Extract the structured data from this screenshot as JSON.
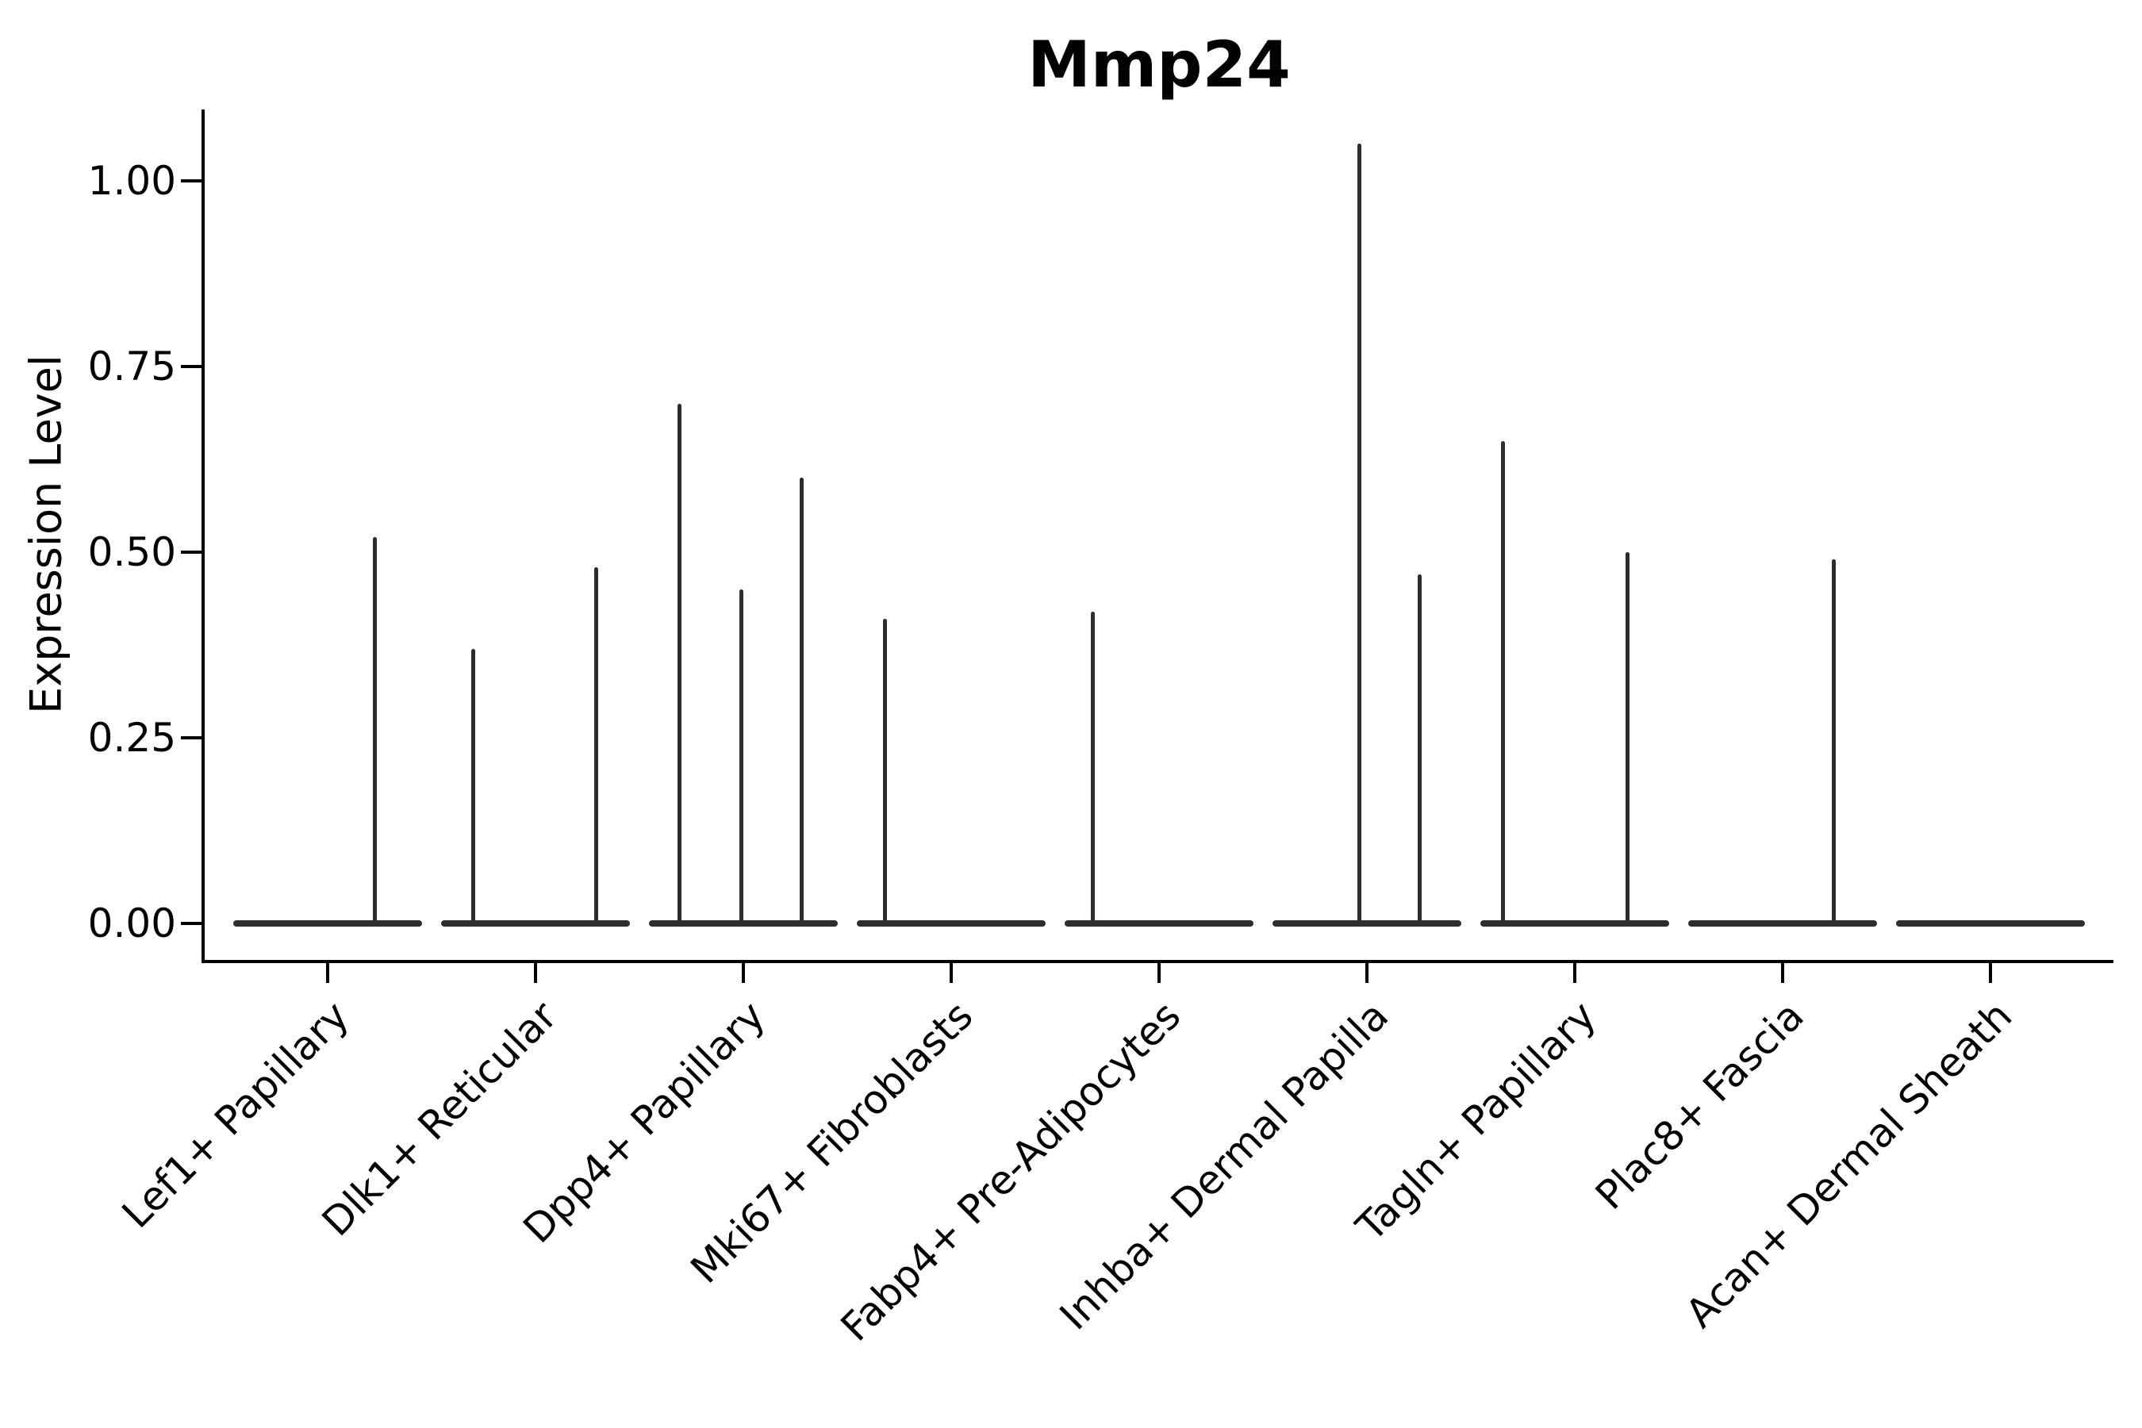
{
  "title": "Mmp24",
  "axes": {
    "ylabel": "Expression Level",
    "xlabel": ""
  },
  "colors": {
    "line": "#2d2d2d",
    "text": "#000000",
    "background": "#ffffff"
  },
  "chart_data": {
    "type": "violin",
    "title": "Mmp24",
    "xlabel": "",
    "ylabel": "Expression Level",
    "ylim": [
      0,
      1.1
    ],
    "yticks": [
      0,
      0.25,
      0.5,
      0.75,
      1.0
    ],
    "ytick_labels": [
      "0.00",
      "0.25",
      "0.50",
      "0.75",
      "1.00"
    ],
    "grid": false,
    "legend": false,
    "description": "Violin plot of Mmp24 expression; each category shows a flat baseline at 0 with thin vertical spikes (rare expressing cells). Spike offset is the horizontal position as a fraction of category width from the category center; value is the expression level at the spike tip.",
    "categories": [
      "Lef1+ Papillary",
      "Dlk1+ Reticular",
      "Dpp4+ Papillary",
      "Mki67+ Fibroblasts",
      "Fabp4+ Pre-Adipocytes",
      "Inhba+ Dermal Papilla",
      "Tagln+ Papillary",
      "Plac8+ Fascia",
      "Acan+ Dermal Sheath"
    ],
    "series": [
      {
        "category": "Lef1+ Papillary",
        "spikes": [
          {
            "offset": 0.25,
            "value": 0.52
          }
        ]
      },
      {
        "category": "Dlk1+ Reticular",
        "spikes": [
          {
            "offset": -0.33,
            "value": 0.37
          },
          {
            "offset": 0.32,
            "value": 0.48
          }
        ]
      },
      {
        "category": "Dpp4+ Papillary",
        "spikes": [
          {
            "offset": -0.34,
            "value": 0.7
          },
          {
            "offset": -0.01,
            "value": 0.45
          },
          {
            "offset": 0.31,
            "value": 0.6
          }
        ]
      },
      {
        "category": "Mki67+ Fibroblasts",
        "spikes": [
          {
            "offset": -0.35,
            "value": 0.41
          }
        ]
      },
      {
        "category": "Fabp4+ Pre-Adipocytes",
        "spikes": [
          {
            "offset": -0.35,
            "value": 0.42
          }
        ]
      },
      {
        "category": "Inhba+ Dermal Papilla",
        "spikes": [
          {
            "offset": -0.04,
            "value": 1.05
          },
          {
            "offset": 0.28,
            "value": 0.47
          }
        ]
      },
      {
        "category": "Tagln+ Papillary",
        "spikes": [
          {
            "offset": -0.38,
            "value": 0.65
          },
          {
            "offset": 0.28,
            "value": 0.5
          }
        ]
      },
      {
        "category": "Plac8+ Fascia",
        "spikes": [
          {
            "offset": 0.27,
            "value": 0.49
          }
        ]
      },
      {
        "category": "Acan+ Dermal Sheath",
        "spikes": []
      }
    ]
  }
}
